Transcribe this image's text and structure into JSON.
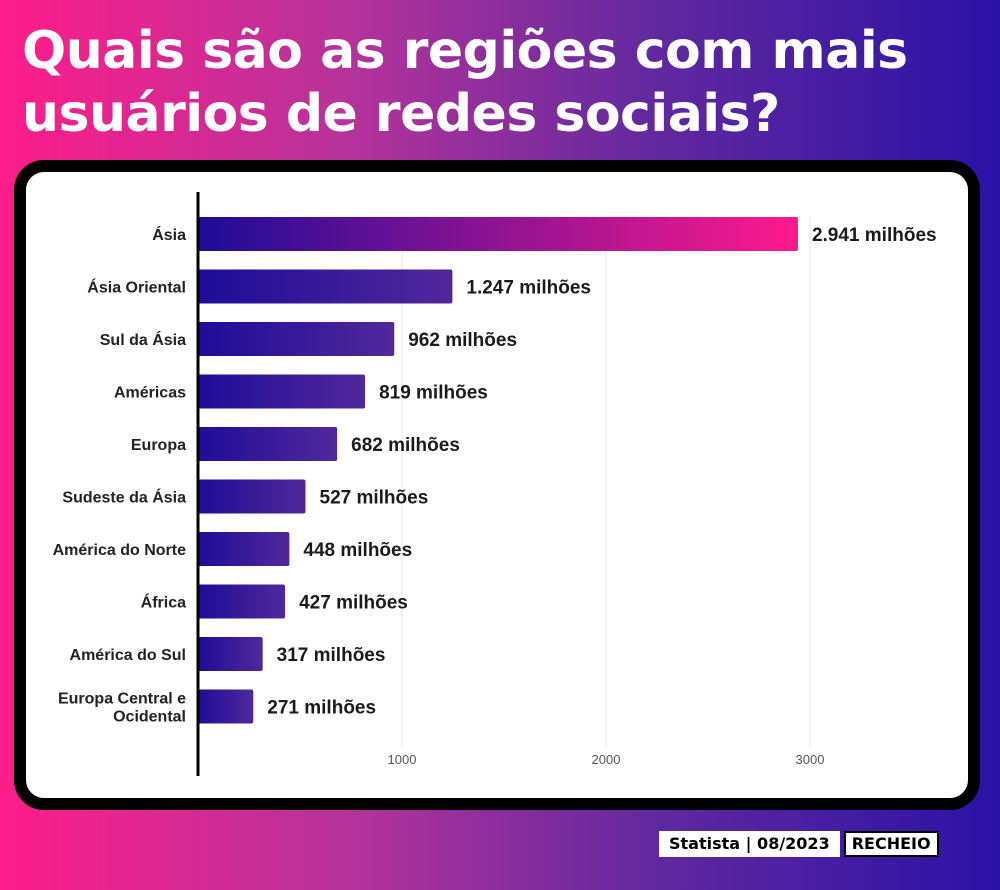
{
  "title": "Quais são as regiões com mais usuários de redes sociais?",
  "footer": {
    "source": "Statista | 08/2023",
    "brand": "RECHEIO"
  },
  "colors": {
    "bar_start": "#1e0c97",
    "bar_end": "#50289a",
    "highlight_end": "#ff1a8c",
    "grid": "#e6e6e6",
    "axis": "#000000"
  },
  "chart_data": {
    "type": "bar",
    "orientation": "horizontal",
    "categories": [
      "Ásia",
      "Ásia Oriental",
      "Sul da Ásia",
      "Américas",
      "Europa",
      "Sudeste da Ásia",
      "América do Norte",
      "África",
      "América do Sul",
      "Europa Central e Ocidental"
    ],
    "values": [
      2941,
      1247,
      962,
      819,
      682,
      527,
      448,
      427,
      317,
      271
    ],
    "value_labels": [
      "2.941 milhões",
      "1.247 milhões",
      "962 milhões",
      "819 milhões",
      "682 milhões",
      "527 milhões",
      "448 milhões",
      "427 milhões",
      "317 milhões",
      "271 milhões"
    ],
    "xlim": [
      0,
      3500
    ],
    "xticks": [
      1000,
      2000,
      3000
    ],
    "xtick_labels": [
      "1000",
      "2000",
      "3000"
    ],
    "grid": true
  }
}
